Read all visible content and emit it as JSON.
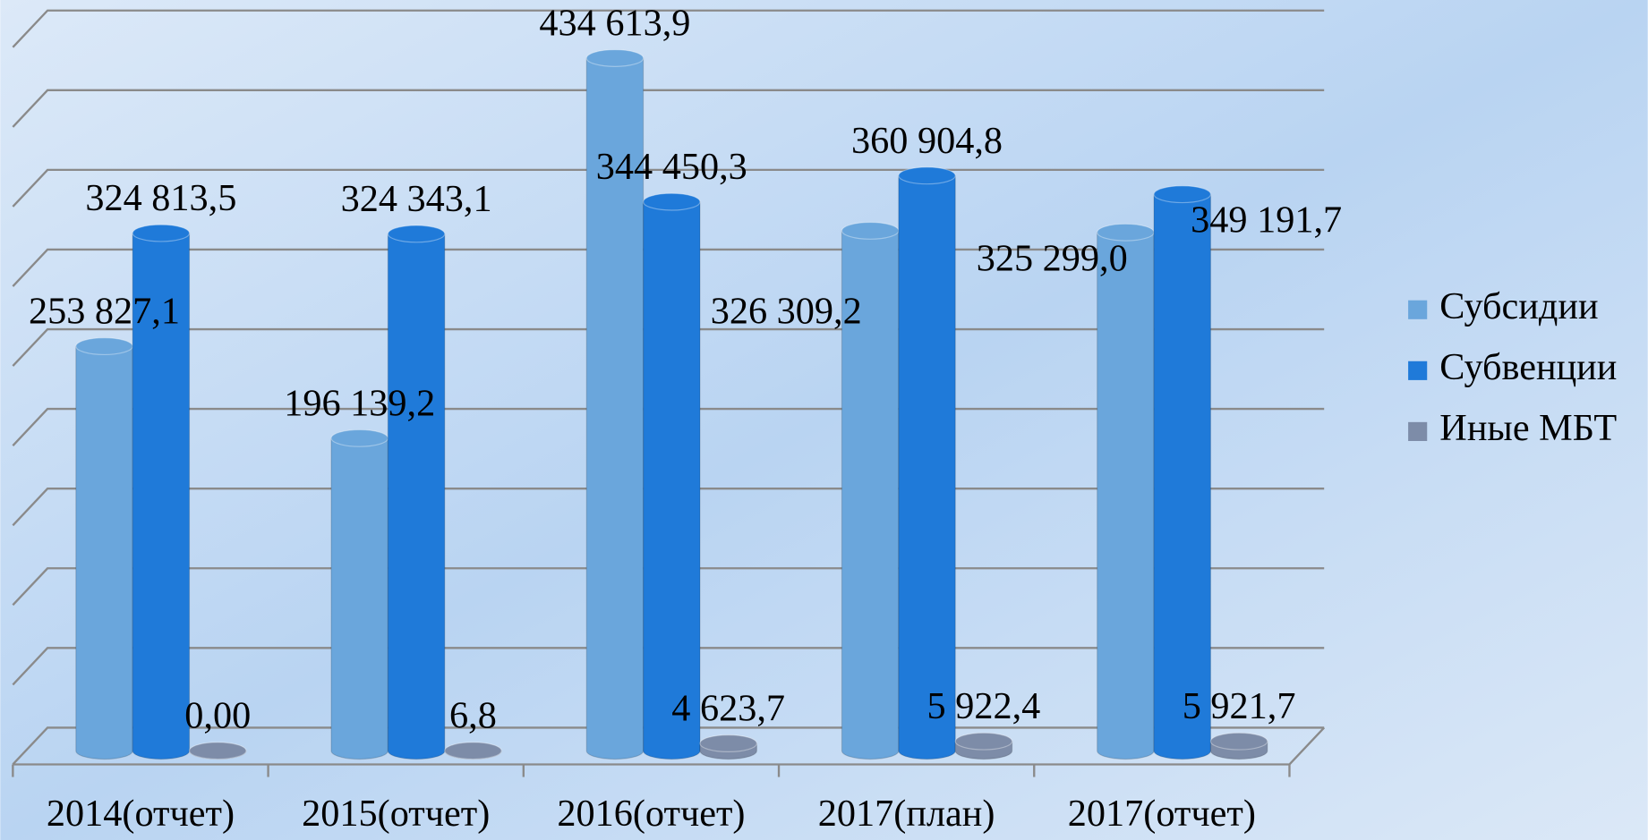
{
  "chart_data": {
    "type": "bar3d",
    "categories": [
      "2014(отчет)",
      "2015(отчет)",
      "2016(отчет)",
      "2017(план)",
      "2017(отчет)"
    ],
    "series": [
      {
        "name": "Субсидии",
        "color": "#6aa6dc",
        "values": [
          253827.1,
          196139.2,
          434613.9,
          326309.2,
          325299.0
        ],
        "value_labels": [
          "253 827,1",
          "196 139,2",
          "434 613,9",
          "326 309,2",
          "325 299,0"
        ]
      },
      {
        "name": "Субвенции",
        "color": "#1f7ad9",
        "values": [
          324813.5,
          324343.1,
          344450.3,
          360904.8,
          349191.7
        ],
        "value_labels": [
          "324 813,5",
          "324 343,1",
          "344 450,3",
          "360 904,8",
          "349 191,7"
        ]
      },
      {
        "name": "Иные МБТ",
        "color": "#7d8ca8",
        "values": [
          0,
          6.8,
          4623.7,
          5922.4,
          5921.7
        ],
        "value_labels": [
          "0,00",
          "6,8",
          "4 623,7",
          "5 922,4",
          "5 921,7"
        ]
      }
    ],
    "ylim": [
      0,
      450000
    ],
    "yticks": [
      0,
      50000,
      100000,
      150000,
      200000,
      250000,
      300000,
      350000,
      400000,
      450000
    ],
    "grid": true,
    "legend": "right"
  }
}
